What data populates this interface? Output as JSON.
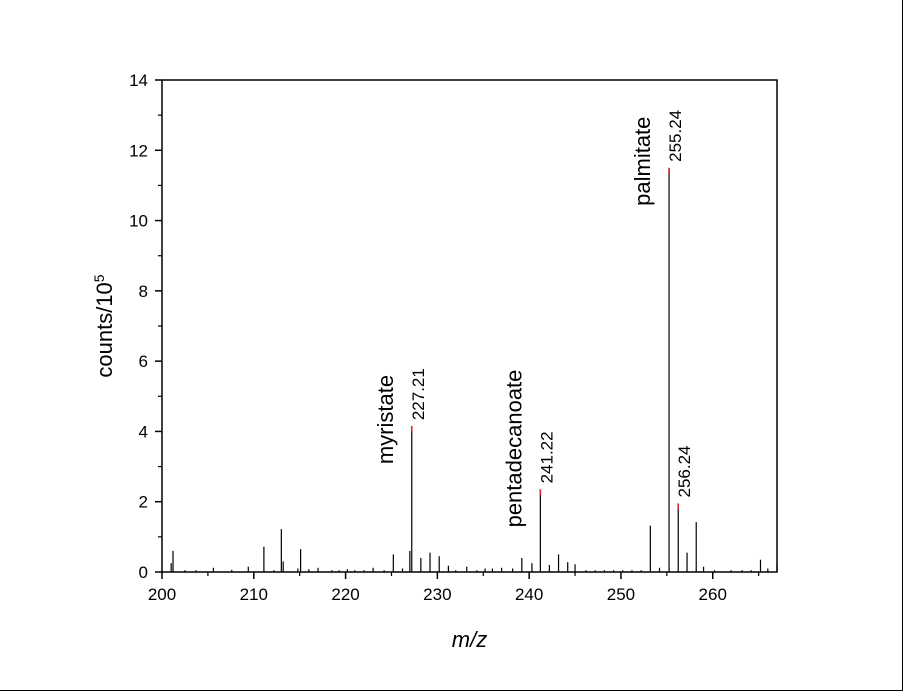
{
  "chart_data": {
    "type": "bar",
    "title": "",
    "xlabel": "m/z",
    "ylabel_base": "counts/10",
    "ylabel_exp": "5",
    "xlim": [
      200,
      267
    ],
    "ylim": [
      0,
      14
    ],
    "x_ticks": [
      200,
      210,
      220,
      230,
      240,
      250,
      260
    ],
    "y_ticks": [
      0,
      2,
      4,
      6,
      8,
      10,
      12,
      14
    ],
    "grid": false,
    "legend": "none",
    "bar_color": "#000000",
    "highlight_color": "#d9262c",
    "x": [
      201.0,
      201.2,
      202.5,
      203.7,
      205.6,
      207.6,
      209.4,
      211.1,
      212.2,
      213.0,
      213.2,
      214.8,
      215.1,
      216.0,
      217.0,
      218.5,
      219.3,
      220.2,
      221.0,
      222.0,
      223.0,
      224.2,
      225.2,
      226.2,
      227.0,
      227.21,
      228.2,
      229.2,
      230.2,
      231.2,
      232.0,
      233.2,
      234.3,
      235.2,
      236.0,
      237.0,
      238.2,
      239.2,
      240.3,
      241.22,
      242.2,
      243.2,
      244.2,
      245.0,
      246.2,
      247.2,
      248.2,
      249.2,
      250.2,
      251.2,
      252.2,
      253.2,
      254.2,
      255.24,
      256.24,
      257.2,
      258.2,
      259.0,
      260.2,
      262.0,
      263.2,
      264.2,
      265.2,
      266.0,
      267.0
    ],
    "values": [
      0.25,
      0.6,
      0.05,
      0.05,
      0.12,
      0.06,
      0.15,
      0.72,
      0.05,
      1.22,
      0.3,
      0.1,
      0.65,
      0.08,
      0.12,
      0.05,
      0.05,
      0.08,
      0.05,
      0.05,
      0.12,
      0.05,
      0.5,
      0.1,
      0.6,
      4.15,
      0.4,
      0.55,
      0.45,
      0.18,
      0.05,
      0.15,
      0.05,
      0.1,
      0.1,
      0.12,
      0.1,
      0.4,
      0.25,
      2.35,
      0.2,
      0.5,
      0.28,
      0.22,
      0.05,
      0.05,
      0.05,
      0.05,
      0.05,
      0.05,
      0.05,
      1.32,
      0.12,
      11.5,
      1.95,
      0.55,
      1.42,
      0.15,
      0.05,
      0.05,
      0.05,
      0.05,
      0.35,
      0.1,
      0.2
    ],
    "annotations": [
      {
        "name": "myristate",
        "mz": "227.21",
        "x": 227.21,
        "y": 4.15
      },
      {
        "name": "pentadecanoate",
        "mz": "241.22",
        "x": 241.22,
        "y": 2.35
      },
      {
        "name": "palmitate",
        "mz": "255.24",
        "x": 255.24,
        "y": 11.5
      },
      {
        "name": "",
        "mz": "256.24",
        "x": 256.24,
        "y": 1.95
      }
    ]
  }
}
